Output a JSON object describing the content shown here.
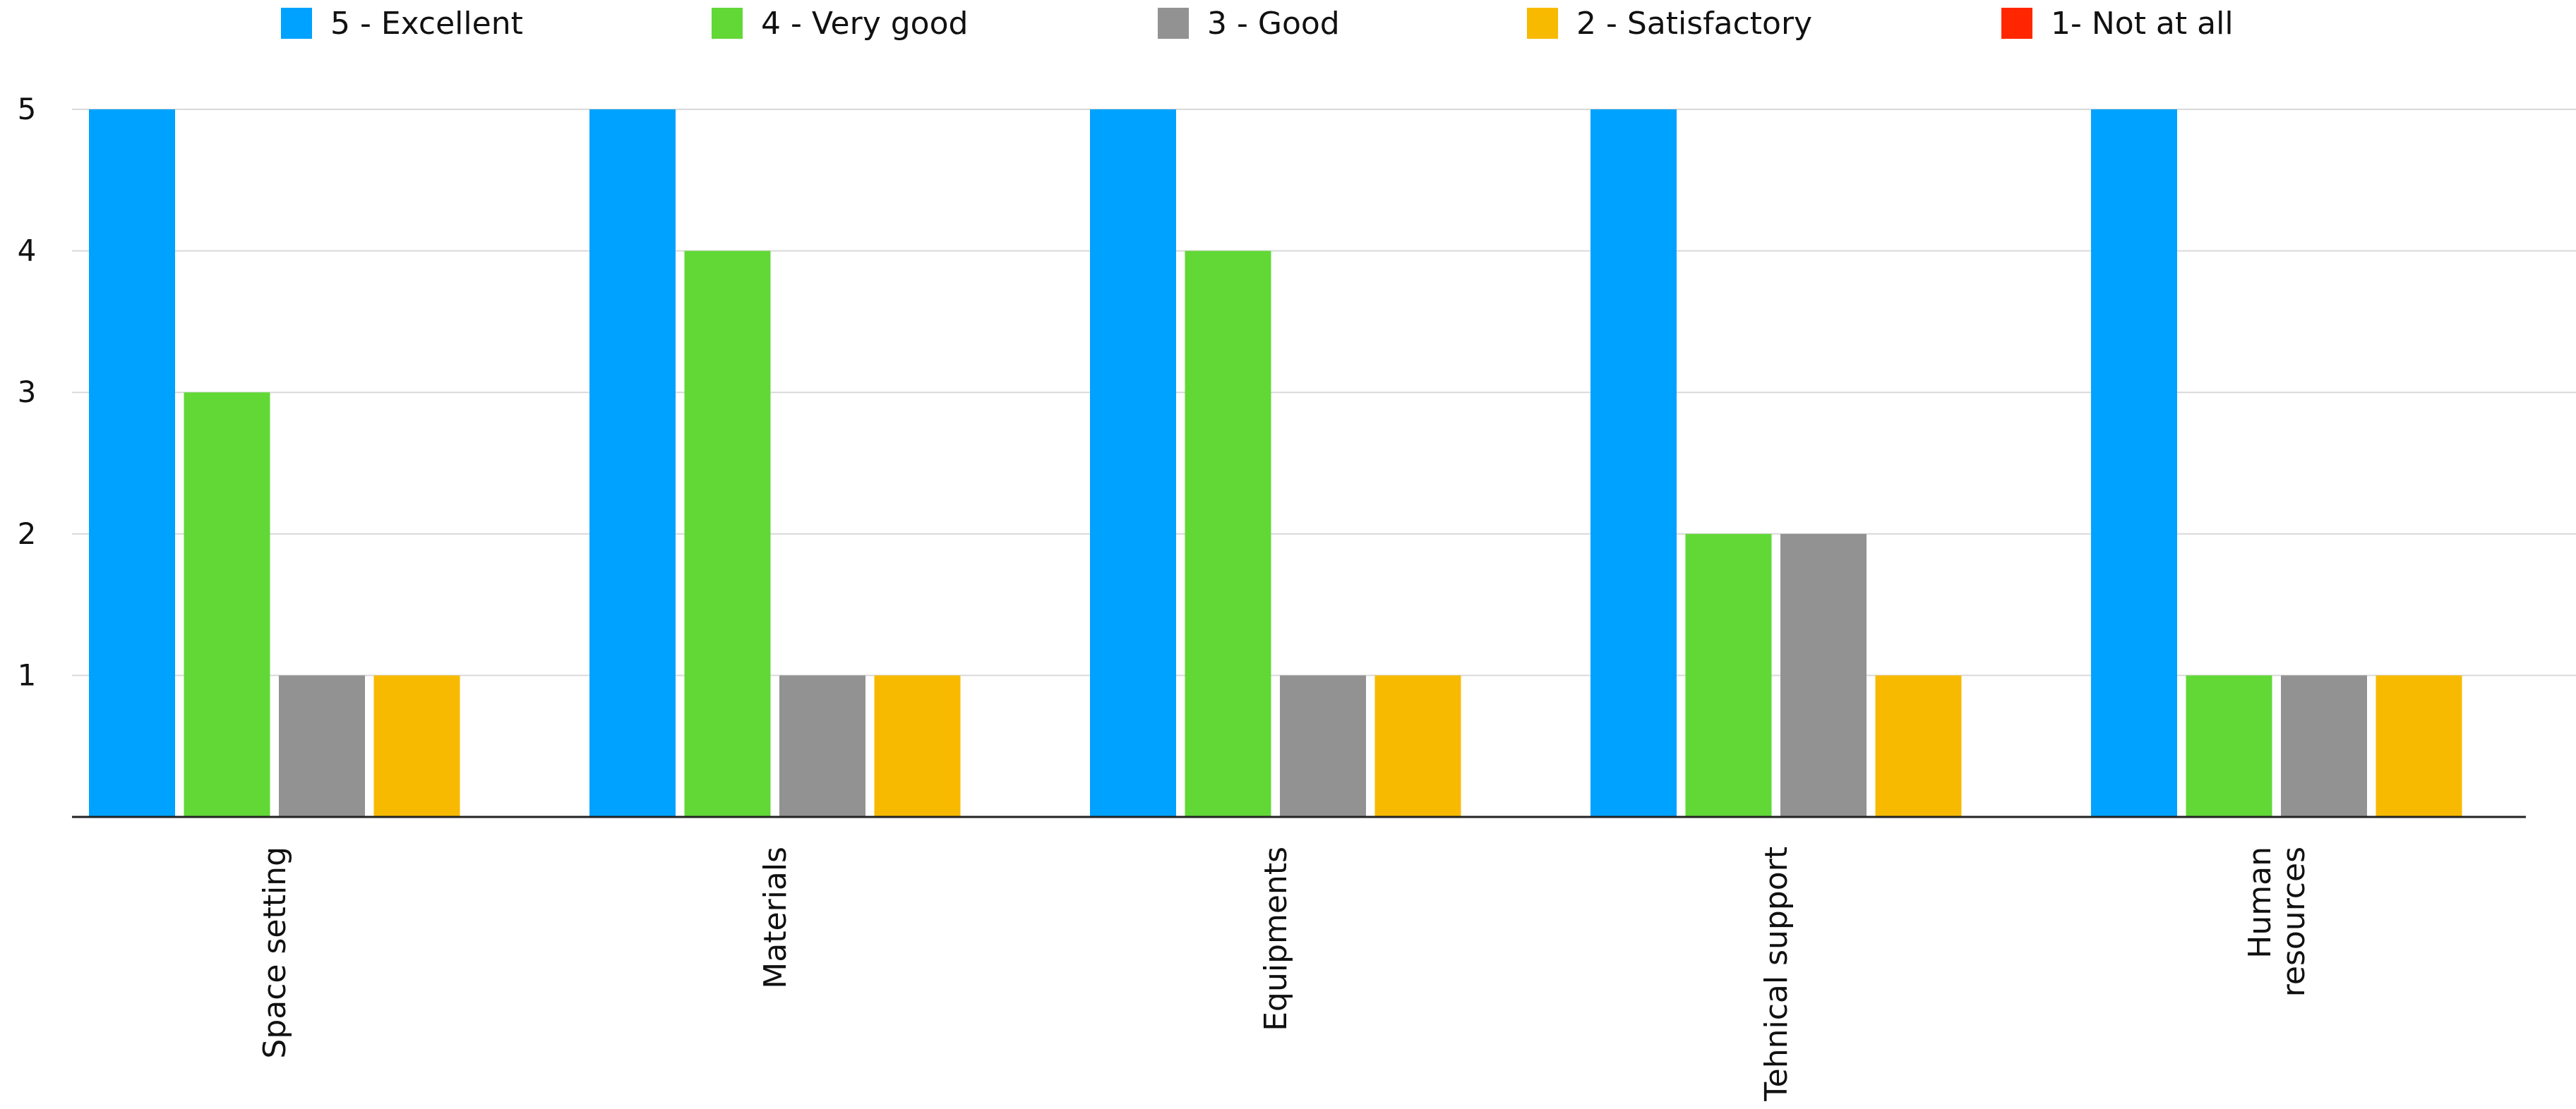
{
  "chart_data": {
    "type": "bar",
    "title": "",
    "xlabel": "",
    "ylabel": "",
    "categories": [
      "Space setting",
      "Materials",
      "Equipments",
      "Tehnical support",
      "Human\nresources"
    ],
    "ylim": [
      0,
      5
    ],
    "yticks": [
      1,
      2,
      3,
      4,
      5
    ],
    "grid": true,
    "legend_position": "top",
    "series": [
      {
        "name": "5 - Excellent",
        "color": "#00A2FF",
        "values": [
          5,
          5,
          5,
          5,
          5
        ]
      },
      {
        "name": "4 - Very good",
        "color": "#61D836",
        "values": [
          3,
          4,
          4,
          2,
          1
        ]
      },
      {
        "name": "3 - Good",
        "color": "#929292",
        "values": [
          1,
          1,
          1,
          2,
          1
        ]
      },
      {
        "name": "2 - Satisfactory",
        "color": "#F8BA00",
        "values": [
          1,
          1,
          1,
          1,
          1
        ]
      },
      {
        "name": "1- Not at all",
        "color": "#FF2600",
        "values": [
          0,
          0,
          0,
          0,
          0
        ]
      }
    ]
  }
}
